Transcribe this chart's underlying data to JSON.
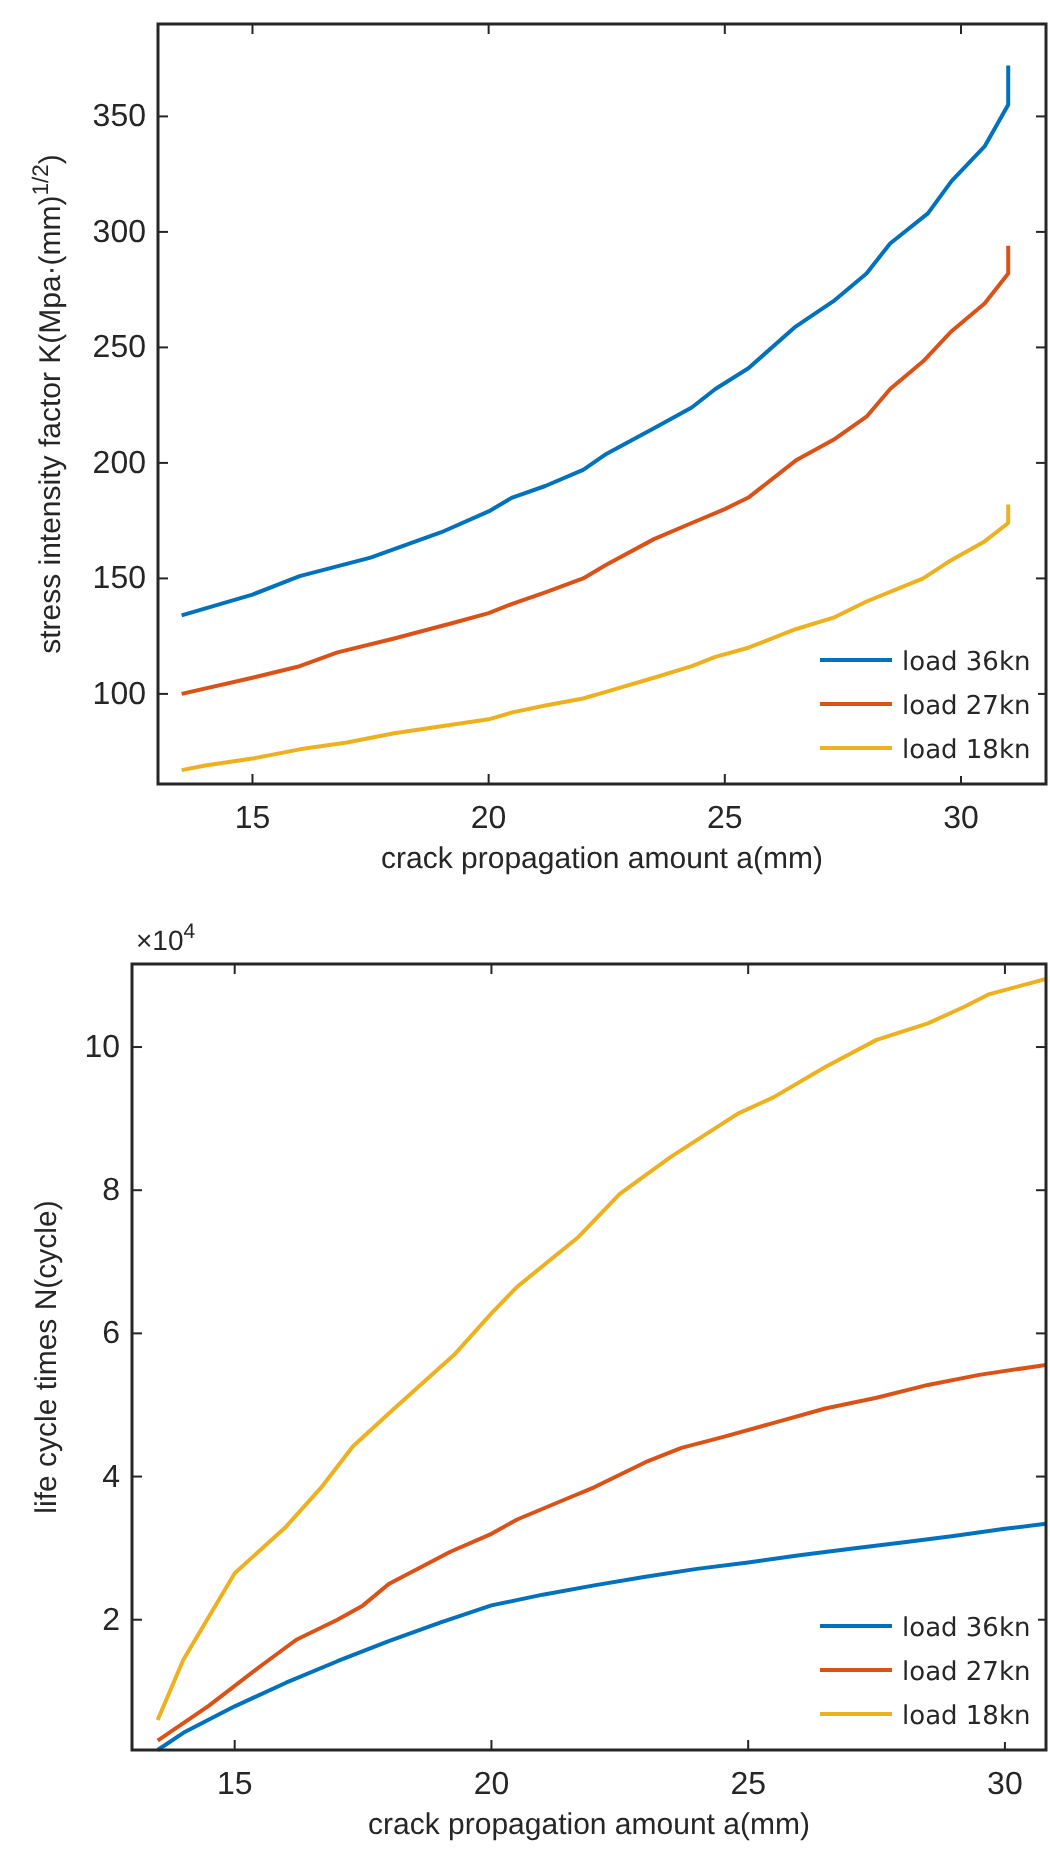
{
  "chart_data": [
    {
      "type": "line",
      "xlabel": "crack propagation amount a(mm)",
      "ylabel": "stress intensity factor K(Mpa·(mm)$^{1/2}$)",
      "xlim": [
        13,
        31.8
      ],
      "xticks": [
        15,
        20,
        25,
        30
      ],
      "ylim": [
        61,
        390
      ],
      "yticks": [
        100,
        150,
        200,
        250,
        300,
        350
      ],
      "grid": false,
      "legend": "bottom right",
      "line_style": "solid",
      "marker": "none",
      "series": [
        {
          "name": "load 36kn",
          "color": "#0072bd",
          "x": [
            13.5,
            15,
            16,
            17.5,
            19,
            20,
            20.5,
            21.2,
            22,
            22.5,
            23.5,
            24.3,
            24.8,
            25.5,
            26.5,
            27.3,
            28,
            28.5,
            29.3,
            29.8,
            30.5,
            31,
            31
          ],
          "values": [
            134,
            143,
            151,
            159,
            170,
            179,
            185,
            190,
            197,
            204,
            215,
            224,
            232,
            241,
            259,
            270,
            282,
            295,
            308,
            322,
            337,
            355,
            372
          ]
        },
        {
          "name": "load 27kn",
          "color": "#d95319",
          "x": [
            13.5,
            15,
            16,
            16.8,
            18,
            19.3,
            20,
            20.5,
            21.2,
            22,
            22.5,
            23.5,
            24.3,
            25,
            25.5,
            26.5,
            27.3,
            28,
            28.5,
            29.2,
            29.8,
            30.5,
            31,
            31
          ],
          "values": [
            100,
            107,
            112,
            118,
            124,
            131,
            135,
            139,
            144,
            150,
            156,
            167,
            174,
            180,
            185,
            201,
            210,
            220,
            232,
            244,
            257,
            269,
            282,
            294
          ]
        },
        {
          "name": "load 18kn",
          "color": "#edb120",
          "x": [
            13.5,
            14,
            15,
            16,
            17,
            18,
            19,
            20,
            20.5,
            21.2,
            22,
            22.5,
            23.5,
            24.3,
            24.8,
            25.5,
            26.5,
            27.3,
            28,
            29.2,
            29.8,
            30.5,
            31,
            31
          ],
          "values": [
            67,
            69,
            72,
            76,
            79,
            83,
            86,
            89,
            92,
            95,
            98,
            101,
            107,
            112,
            116,
            120,
            128,
            133,
            140,
            150,
            158,
            166,
            174,
            182
          ]
        }
      ]
    },
    {
      "type": "line",
      "xlabel": "crack propagation amount a(mm)",
      "ylabel": "life cycle times N(cycle)",
      "annotations": [
        "×10$^{4}$"
      ],
      "xlim": [
        13,
        30.8
      ],
      "xticks": [
        15,
        20,
        25,
        30
      ],
      "ylim": [
        0.18,
        11.16
      ],
      "yticks": [
        2,
        4,
        6,
        8,
        10
      ],
      "grid": false,
      "legend": "bottom right",
      "line_style": "solid",
      "marker": "none",
      "series": [
        {
          "name": "load 36kn",
          "color": "#0072bd",
          "x": [
            13.5,
            14,
            15,
            16,
            17,
            18,
            19,
            20,
            21,
            22,
            23,
            24,
            25,
            26,
            27,
            28,
            29,
            30,
            30.8
          ],
          "values": [
            0.18,
            0.42,
            0.79,
            1.12,
            1.42,
            1.7,
            1.96,
            2.2,
            2.35,
            2.48,
            2.6,
            2.71,
            2.8,
            2.9,
            2.99,
            3.08,
            3.17,
            3.27,
            3.34
          ]
        },
        {
          "name": "load 27kn",
          "color": "#d95319",
          "x": [
            13.5,
            14.5,
            15.5,
            16.2,
            17,
            17.5,
            18,
            19.2,
            20,
            20.5,
            21.5,
            22,
            23,
            23.7,
            24.5,
            25.5,
            26.5,
            27.5,
            28.5,
            29.5,
            30.8
          ],
          "values": [
            0.31,
            0.8,
            1.35,
            1.72,
            2,
            2.2,
            2.5,
            2.95,
            3.2,
            3.4,
            3.7,
            3.85,
            4.2,
            4.4,
            4.55,
            4.75,
            4.95,
            5.1,
            5.28,
            5.42,
            5.56
          ]
        },
        {
          "name": "load 18kn",
          "color": "#edb120",
          "x": [
            13.5,
            14,
            15,
            16,
            16.7,
            17.3,
            18,
            19.3,
            20,
            20.5,
            21.7,
            22.5,
            23.5,
            24.8,
            25.5,
            26.5,
            27.5,
            28.5,
            29.2,
            29.7,
            30.8
          ],
          "values": [
            0.6,
            1.44,
            2.65,
            3.3,
            3.86,
            4.42,
            4.88,
            5.72,
            6.28,
            6.65,
            7.35,
            7.95,
            8.47,
            9.07,
            9.3,
            9.72,
            10.1,
            10.33,
            10.56,
            10.74,
            10.95
          ]
        }
      ]
    }
  ]
}
